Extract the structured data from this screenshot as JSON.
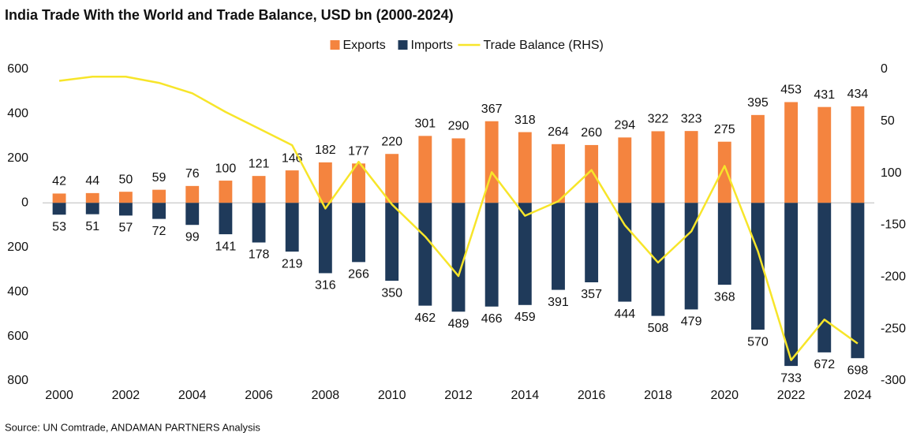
{
  "chart_data": {
    "type": "bar",
    "title": "India Trade With the World and Trade Balance, USD bn (2000-2024)",
    "source": "Source: UN Comtrade, ANDAMAN PARTNERS Analysis",
    "categories": [
      "2000",
      null,
      "2002",
      null,
      "2004",
      null,
      "2006",
      null,
      "2008",
      null,
      "2010",
      null,
      "2012",
      null,
      "2014",
      null,
      "2016",
      null,
      "2018",
      null,
      "2020",
      null,
      "2022",
      null,
      "2024"
    ],
    "series": [
      {
        "name": "Exports",
        "type": "bar",
        "color": "#f4843f",
        "values": [
          42,
          44,
          50,
          59,
          76,
          100,
          121,
          146,
          182,
          177,
          220,
          301,
          290,
          367,
          318,
          264,
          260,
          294,
          322,
          323,
          275,
          395,
          453,
          431,
          434
        ]
      },
      {
        "name": "Imports",
        "type": "bar",
        "color": "#1f3a5a",
        "values": [
          -53,
          -51,
          -57,
          -72,
          -99,
          -141,
          -178,
          -219,
          -316,
          -266,
          -350,
          -462,
          -489,
          -466,
          -459,
          -391,
          -357,
          -444,
          -508,
          -479,
          -368,
          -570,
          -733,
          -672,
          -698
        ],
        "value_labels": [
          "53",
          "51",
          "57",
          "72",
          "99",
          "141",
          "178",
          "219",
          "316",
          "266",
          "350",
          "462",
          "489",
          "466",
          "459",
          "391",
          "357",
          "444",
          "508",
          "479",
          "368",
          "570",
          "733",
          "672",
          "698"
        ]
      },
      {
        "name": "Trade Balance (RHS)",
        "type": "line",
        "color": "#f7e52a",
        "axis": "y2",
        "values": [
          -11,
          -7,
          -7,
          -13,
          -23,
          -41,
          -57,
          -73,
          -134,
          -89,
          -130,
          -161,
          -199,
          -99,
          -141,
          -127,
          -97,
          -150,
          -186,
          -156,
          -93,
          -175,
          -280,
          -241,
          -264
        ]
      }
    ],
    "ylim": [
      -800,
      600
    ],
    "yticks": [
      600,
      400,
      200,
      0,
      {
        "value": -200,
        "label": "200"
      },
      {
        "value": -400,
        "label": "400"
      },
      {
        "value": -600,
        "label": "600"
      },
      {
        "value": -800,
        "label": "800"
      }
    ],
    "y2lim": [
      -300,
      0
    ],
    "y2ticks": [
      0,
      {
        "value": -50,
        "label": "50"
      },
      {
        "value": -100,
        "label": "100"
      },
      -150,
      -200,
      -250,
      -300
    ],
    "legend": "top",
    "grid": false
  }
}
